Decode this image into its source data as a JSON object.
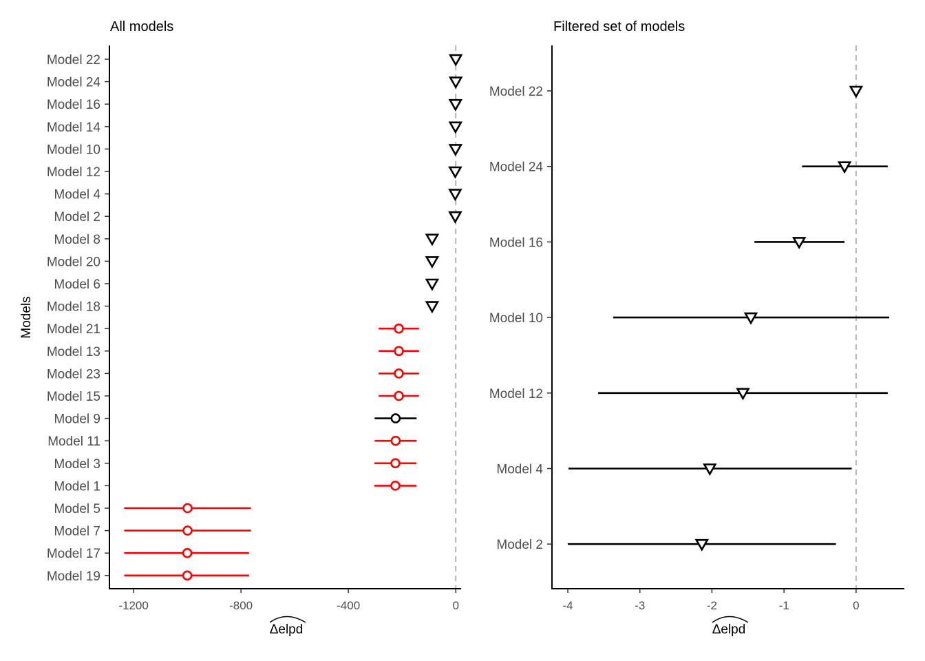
{
  "chart_data": [
    {
      "type": "scatter",
      "title": "All models",
      "xlabel": "Δelpd",
      "ylabel": "Models",
      "xlim": [
        -1290,
        20
      ],
      "xticks": [
        -1200,
        -800,
        -400,
        0
      ],
      "tick_labels": [
        "-1200",
        "-800",
        "-400",
        "0"
      ],
      "reference_line": 0,
      "grid": false,
      "legend": "none",
      "colors": {
        "excluded": "#ff0000",
        "included": "#000000",
        "reference": "#b3b3b3"
      },
      "points": [
        {
          "model": "Model 22",
          "delta_elpd": 0,
          "lower": 0,
          "upper": 0,
          "marker": "triangle-down",
          "color": "#000000"
        },
        {
          "model": "Model 24",
          "delta_elpd": 0,
          "lower": 0,
          "upper": 0,
          "marker": "triangle-down",
          "color": "#000000"
        },
        {
          "model": "Model 16",
          "delta_elpd": -1,
          "lower": -1,
          "upper": 0,
          "marker": "triangle-down",
          "color": "#000000"
        },
        {
          "model": "Model 14",
          "delta_elpd": -1,
          "lower": -1,
          "upper": 0,
          "marker": "triangle-down",
          "color": "#000000"
        },
        {
          "model": "Model 10",
          "delta_elpd": -1,
          "lower": -3,
          "upper": 0,
          "marker": "triangle-down",
          "color": "#000000"
        },
        {
          "model": "Model 12",
          "delta_elpd": -2,
          "lower": -4,
          "upper": 0,
          "marker": "triangle-down",
          "color": "#000000"
        },
        {
          "model": "Model 4",
          "delta_elpd": -2,
          "lower": -4,
          "upper": 0,
          "marker": "triangle-down",
          "color": "#000000"
        },
        {
          "model": "Model 2",
          "delta_elpd": -2,
          "lower": -4,
          "upper": 0,
          "marker": "triangle-down",
          "color": "#000000"
        },
        {
          "model": "Model 8",
          "delta_elpd": -88,
          "lower": -92,
          "upper": -84,
          "marker": "triangle-down",
          "color": "#000000"
        },
        {
          "model": "Model 20",
          "delta_elpd": -88,
          "lower": -92,
          "upper": -84,
          "marker": "triangle-down",
          "color": "#000000"
        },
        {
          "model": "Model 6",
          "delta_elpd": -88,
          "lower": -92,
          "upper": -84,
          "marker": "triangle-down",
          "color": "#000000"
        },
        {
          "model": "Model 18",
          "delta_elpd": -88,
          "lower": -92,
          "upper": -84,
          "marker": "triangle-down",
          "color": "#000000"
        },
        {
          "model": "Model 21",
          "delta_elpd": -212,
          "lower": -287,
          "upper": -137,
          "marker": "circle",
          "color": "#ff0000"
        },
        {
          "model": "Model 13",
          "delta_elpd": -212,
          "lower": -287,
          "upper": -137,
          "marker": "circle",
          "color": "#ff0000"
        },
        {
          "model": "Model 23",
          "delta_elpd": -212,
          "lower": -287,
          "upper": -137,
          "marker": "circle",
          "color": "#ff0000"
        },
        {
          "model": "Model 15",
          "delta_elpd": -212,
          "lower": -287,
          "upper": -137,
          "marker": "circle",
          "color": "#ff0000"
        },
        {
          "model": "Model 9",
          "delta_elpd": -224,
          "lower": -302,
          "upper": -146,
          "marker": "circle",
          "color": "#000000"
        },
        {
          "model": "Model 11",
          "delta_elpd": -224,
          "lower": -302,
          "upper": -146,
          "marker": "circle",
          "color": "#ff0000"
        },
        {
          "model": "Model 3",
          "delta_elpd": -225,
          "lower": -303,
          "upper": -147,
          "marker": "circle",
          "color": "#ff0000"
        },
        {
          "model": "Model 1",
          "delta_elpd": -225,
          "lower": -303,
          "upper": -147,
          "marker": "circle",
          "color": "#ff0000"
        },
        {
          "model": "Model 5",
          "delta_elpd": -999,
          "lower": -1235,
          "upper": -763,
          "marker": "circle",
          "color": "#ff0000"
        },
        {
          "model": "Model 7",
          "delta_elpd": -999,
          "lower": -1235,
          "upper": -763,
          "marker": "circle",
          "color": "#ff0000"
        },
        {
          "model": "Model 17",
          "delta_elpd": -1000,
          "lower": -1235,
          "upper": -770,
          "marker": "circle",
          "color": "#ff0000"
        },
        {
          "model": "Model 19",
          "delta_elpd": -1000,
          "lower": -1235,
          "upper": -770,
          "marker": "circle",
          "color": "#ff0000"
        }
      ]
    },
    {
      "type": "scatter",
      "title": "Filtered set of models",
      "xlabel": "Δelpd",
      "ylabel": "",
      "xlim": [
        -4.22,
        0.67
      ],
      "xticks": [
        -4,
        -3,
        -2,
        -1,
        0
      ],
      "tick_labels": [
        "-4",
        "-3",
        "-2",
        "-1",
        "0"
      ],
      "reference_line": 0,
      "grid": false,
      "legend": "none",
      "colors": {
        "included": "#000000",
        "reference": "#b3b3b3"
      },
      "points": [
        {
          "model": "Model 22",
          "delta_elpd": 0,
          "lower": 0,
          "upper": 0,
          "marker": "triangle-down",
          "color": "#000000"
        },
        {
          "model": "Model 24",
          "delta_elpd": -0.16,
          "lower": -0.75,
          "upper": 0.44,
          "marker": "triangle-down",
          "color": "#000000"
        },
        {
          "model": "Model 16",
          "delta_elpd": -0.79,
          "lower": -1.41,
          "upper": -0.16,
          "marker": "triangle-down",
          "color": "#000000"
        },
        {
          "model": "Model 10",
          "delta_elpd": -1.46,
          "lower": -3.37,
          "upper": 0.46,
          "marker": "triangle-down",
          "color": "#000000"
        },
        {
          "model": "Model 12",
          "delta_elpd": -1.57,
          "lower": -3.58,
          "upper": 0.44,
          "marker": "triangle-down",
          "color": "#000000"
        },
        {
          "model": "Model 4",
          "delta_elpd": -2.03,
          "lower": -3.99,
          "upper": -0.06,
          "marker": "triangle-down",
          "color": "#000000"
        },
        {
          "model": "Model 2",
          "delta_elpd": -2.14,
          "lower": -4.0,
          "upper": -0.28,
          "marker": "triangle-down",
          "color": "#000000"
        }
      ]
    }
  ]
}
